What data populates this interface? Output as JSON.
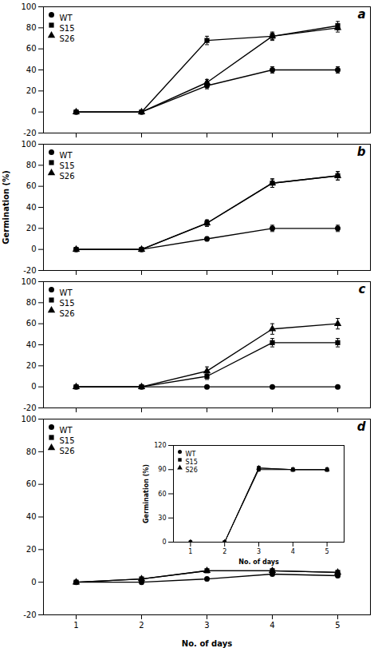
{
  "chart_data": [
    {
      "type": "line",
      "title": "a",
      "x": [
        1,
        2,
        3,
        4,
        5
      ],
      "series": [
        {
          "name": "WT",
          "color": "black",
          "marker": "circle",
          "values": [
            0,
            0,
            25,
            40,
            40
          ],
          "errors": [
            1,
            1,
            3,
            3,
            3
          ]
        },
        {
          "name": "S15",
          "color": "black",
          "marker": "square",
          "values": [
            0,
            0,
            68,
            72,
            82
          ],
          "errors": [
            1,
            1,
            4,
            4,
            4
          ]
        },
        {
          "name": "S26",
          "color": "black",
          "marker": "triangle",
          "values": [
            0,
            0,
            28,
            72,
            80
          ],
          "errors": [
            1,
            1,
            3,
            3,
            4
          ]
        }
      ],
      "xlim": [
        0.5,
        5.5
      ],
      "xticks": [
        1,
        2,
        3,
        4,
        5
      ],
      "ylim": [
        -20,
        100
      ],
      "yticks": [
        -20,
        0,
        20,
        40,
        60,
        80,
        100
      ],
      "legend": "upper left",
      "tick_labels": "y"
    },
    {
      "type": "line",
      "title": "b",
      "ylabel": "Germination (%)",
      "x": [
        1,
        2,
        3,
        4,
        5
      ],
      "series": [
        {
          "name": "WT",
          "color": "black",
          "marker": "circle",
          "values": [
            0,
            0,
            10,
            20,
            20
          ],
          "errors": [
            1,
            1,
            2,
            3,
            3
          ]
        },
        {
          "name": "S15",
          "color": "black",
          "marker": "square",
          "values": [
            0,
            0,
            25,
            63,
            70
          ],
          "errors": [
            1,
            1,
            3,
            4,
            4
          ]
        },
        {
          "name": "S26",
          "color": "black",
          "marker": "triangle",
          "values": [
            0,
            0,
            25,
            63,
            70
          ],
          "errors": [
            1,
            1,
            3,
            4,
            4
          ]
        }
      ],
      "xlim": [
        0.5,
        5.5
      ],
      "xticks": [
        1,
        2,
        3,
        4,
        5
      ],
      "ylim": [
        -20,
        100
      ],
      "yticks": [
        -20,
        0,
        20,
        40,
        60,
        80,
        100
      ],
      "legend": "upper left",
      "tick_labels": "y"
    },
    {
      "type": "line",
      "title": "c",
      "x": [
        1,
        2,
        3,
        4,
        5
      ],
      "series": [
        {
          "name": "WT",
          "color": "black",
          "marker": "circle",
          "values": [
            0,
            0,
            0,
            0,
            0
          ],
          "errors": [
            1,
            1,
            1,
            1,
            1
          ]
        },
        {
          "name": "S15",
          "color": "black",
          "marker": "square",
          "values": [
            0,
            0,
            10,
            42,
            42
          ],
          "errors": [
            1,
            1,
            3,
            4,
            4
          ]
        },
        {
          "name": "S26",
          "color": "black",
          "marker": "triangle",
          "values": [
            0,
            0,
            15,
            55,
            60
          ],
          "errors": [
            1,
            1,
            4,
            5,
            5
          ]
        }
      ],
      "xlim": [
        0.5,
        5.5
      ],
      "xticks": [
        1,
        2,
        3,
        4,
        5
      ],
      "ylim": [
        -20,
        100
      ],
      "yticks": [
        -20,
        0,
        20,
        40,
        60,
        80,
        100
      ],
      "legend": "upper left",
      "tick_labels": "y"
    },
    {
      "type": "line",
      "title": "d",
      "xlabel": "No. of days",
      "x": [
        1,
        2,
        3,
        4,
        5
      ],
      "series": [
        {
          "name": "WT",
          "color": "black",
          "marker": "circle",
          "values": [
            0,
            0,
            2,
            5,
            4
          ],
          "errors": [
            1,
            1,
            1,
            1,
            1
          ]
        },
        {
          "name": "S15",
          "color": "black",
          "marker": "square",
          "values": [
            0,
            2,
            7,
            7,
            6
          ],
          "errors": [
            1,
            1,
            1,
            1,
            1
          ]
        },
        {
          "name": "S26",
          "color": "black",
          "marker": "triangle",
          "values": [
            0,
            2,
            7,
            7,
            6
          ],
          "errors": [
            1,
            1,
            1,
            1,
            1
          ]
        }
      ],
      "xlim": [
        0.5,
        5.5
      ],
      "xticks": [
        1,
        2,
        3,
        4,
        5
      ],
      "ylim": [
        -20,
        100
      ],
      "yticks": [
        -20,
        0,
        20,
        40,
        60,
        80,
        100
      ],
      "legend": "upper left"
    },
    {
      "type": "line",
      "xlabel": "No. of days",
      "ylabel": "Germination (%)",
      "x": [
        1,
        2,
        3,
        4,
        5
      ],
      "series": [
        {
          "name": "WT",
          "color": "black",
          "marker": "circle",
          "values": [
            0,
            0,
            90,
            90,
            90
          ],
          "errors": [
            0,
            0,
            2,
            2,
            2
          ]
        },
        {
          "name": "S15",
          "color": "black",
          "marker": "square",
          "values": [
            0,
            0,
            92,
            90,
            90
          ],
          "errors": [
            0,
            0,
            2,
            2,
            2
          ]
        },
        {
          "name": "S26",
          "color": "black",
          "marker": "triangle",
          "values": [
            0,
            0,
            92,
            90,
            90
          ],
          "errors": [
            0,
            0,
            2,
            2,
            2
          ]
        }
      ],
      "xlim": [
        0.5,
        5.5
      ],
      "xticks": [
        1,
        2,
        3,
        4,
        5
      ],
      "ylim": [
        0,
        120
      ],
      "yticks": [
        0,
        30,
        60,
        90,
        120
      ],
      "legend": "upper left"
    }
  ]
}
